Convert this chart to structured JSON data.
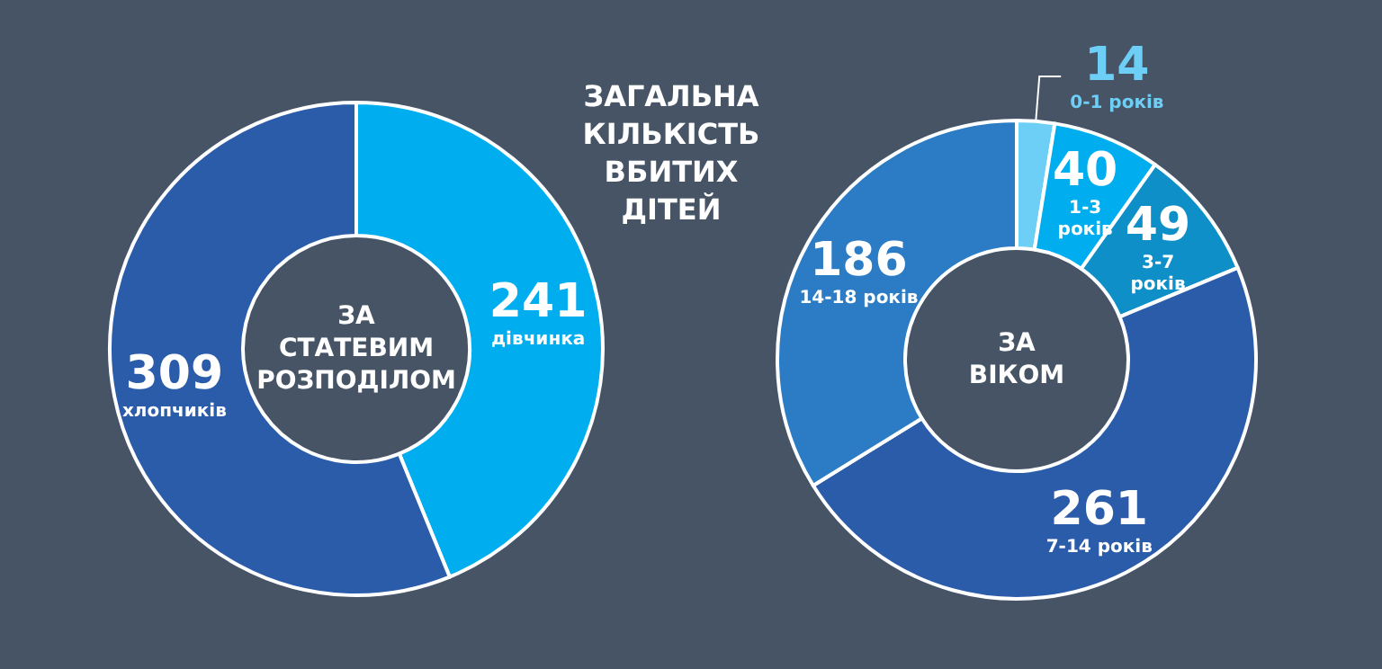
{
  "chart_data": [
    {
      "type": "donut",
      "title": "ЗАГАЛЬНА КІЛЬКІСТЬ ВБИТИХ ДІТЕЙ",
      "subtitle": "ЗА СТАТЕВИМ РОЗПОДІЛОМ",
      "categories": [
        "дівчинка",
        "хлопчиків"
      ],
      "values": [
        241,
        309
      ],
      "colors": [
        "#00aeef",
        "#2a5caa"
      ],
      "data_labels": true,
      "legend": false
    },
    {
      "type": "donut",
      "subtitle": "ЗА ВІКОМ",
      "categories": [
        "0-1 років",
        "1-3 років",
        "3-7 років",
        "7-14 років",
        "14-18 років"
      ],
      "values": [
        14,
        40,
        49,
        261,
        186
      ],
      "colors": [
        "#6dcff6",
        "#00aeef",
        "#0f8fc8",
        "#2a5caa",
        "#2b7cc4"
      ],
      "data_labels": true,
      "legend": false
    }
  ]
}
